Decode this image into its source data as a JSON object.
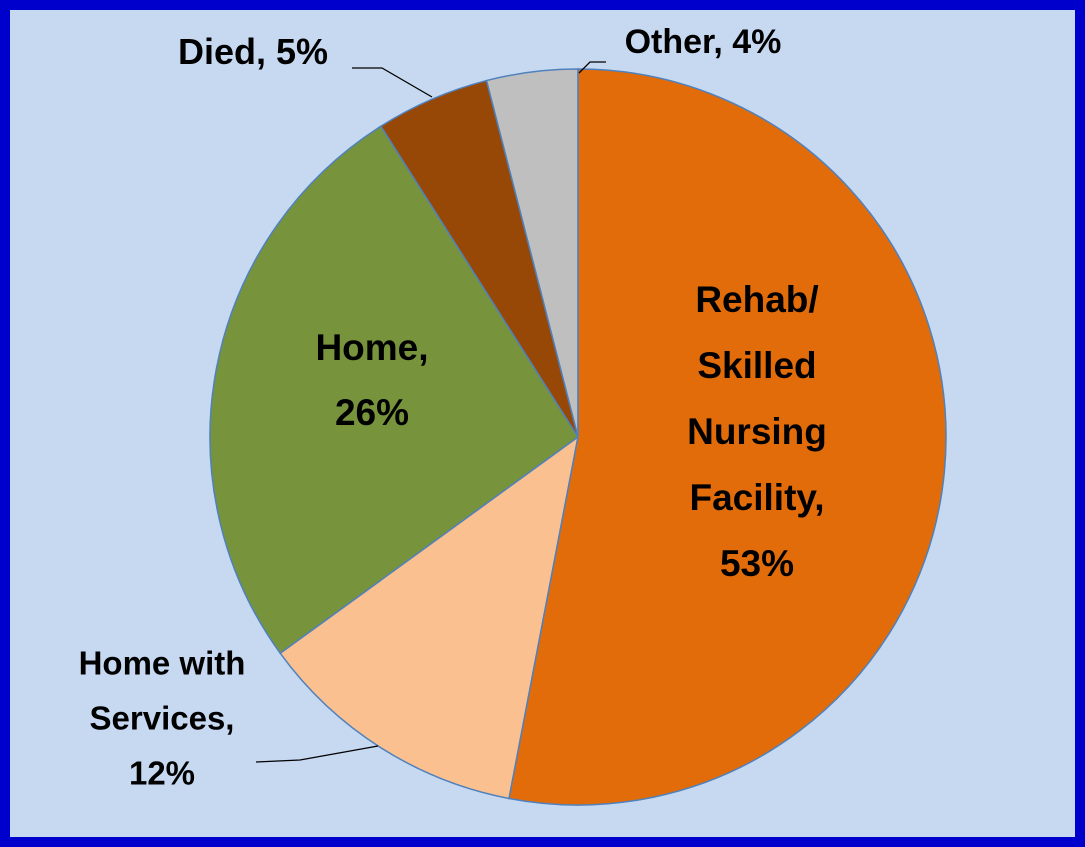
{
  "chart_data": {
    "type": "pie",
    "values": [
      53,
      12,
      26,
      5,
      4
    ],
    "value_labels": [
      "Rehab/ Skilled Nursing Facility, 53%",
      "Home with Services, 12%",
      "Home, 26%",
      "Died, 5%",
      "Other, 4%"
    ],
    "colors": [
      "#e36c0a",
      "#fac090",
      "#77933c",
      "#974806",
      "#bfbfbf"
    ]
  }
}
